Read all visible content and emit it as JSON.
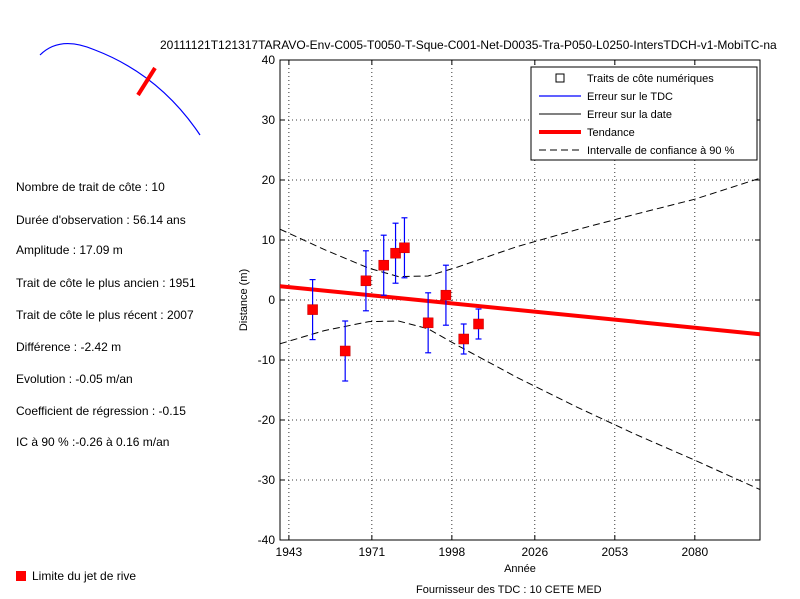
{
  "figure_title": "20111121T121317TARAVO-Env-C005-T0050-T-Sque-C001-Net-D0035-Tra-P050-L0250-IntersTDCH-v1-MobiTC-na",
  "stats": [
    "Nombre de trait de côte : 10",
    "Durée d'observation : 56.14 ans",
    "Amplitude : 17.09 m",
    "Trait de côte le plus ancien : 1951",
    "Trait de côte le plus récent : 2007",
    "Différence : -2.42 m",
    "Evolution : -0.05 m/an",
    "Coefficient de régression : -0.15",
    "IC à 90 % :-0.26 à 0.16 m/an"
  ],
  "limit_label": "Limite du jet de rive",
  "provider": "Fournisseur des TDC : 10 CETE MED",
  "colors": {
    "points": "#ff0000",
    "error": "#0000ff",
    "trend": "#ff0000",
    "ci": "#000000",
    "inset_line": "#0000ff",
    "inset_mark": "#ff0000"
  },
  "chart_data": {
    "type": "scatter",
    "xlabel": "Année",
    "ylabel": "Distance (m)",
    "xlim": [
      1940,
      2102
    ],
    "ylim": [
      -40,
      40
    ],
    "xticks": [
      1943,
      1971,
      1998,
      2026,
      2053,
      2080
    ],
    "yticks": [
      -40,
      -30,
      -20,
      -10,
      0,
      10,
      20,
      30,
      40
    ],
    "grid": true,
    "legend_position": "top-right",
    "legend": [
      "Traits de côte numériques",
      "Erreur sur le TDC",
      "Erreur sur la date",
      "Tendance",
      "Intervalle de confiance à 90 %"
    ],
    "points": [
      {
        "x": 1951,
        "y": -1.6,
        "err": 5
      },
      {
        "x": 1962,
        "y": -8.5,
        "err": 5
      },
      {
        "x": 1969,
        "y": 3.2,
        "err": 5
      },
      {
        "x": 1975,
        "y": 5.8,
        "err": 5
      },
      {
        "x": 1979,
        "y": 7.8,
        "err": 5
      },
      {
        "x": 1982,
        "y": 8.7,
        "err": 5
      },
      {
        "x": 1990,
        "y": -3.8,
        "err": 5
      },
      {
        "x": 1996,
        "y": 0.8,
        "err": 5
      },
      {
        "x": 2002,
        "y": -6.5,
        "err": 2.5
      },
      {
        "x": 2007,
        "y": -4.0,
        "err": 2.5
      }
    ],
    "trend": [
      [
        1940,
        2.3
      ],
      [
        2102,
        -5.7
      ]
    ],
    "ci_upper": [
      [
        1940,
        11.8
      ],
      [
        1955,
        8.4
      ],
      [
        1970,
        5.3
      ],
      [
        1980,
        3.9
      ],
      [
        1990,
        4.0
      ],
      [
        2000,
        5.5
      ],
      [
        2020,
        8.9
      ],
      [
        2040,
        11.7
      ],
      [
        2060,
        14.3
      ],
      [
        2080,
        16.8
      ],
      [
        2102,
        20.3
      ]
    ],
    "ci_lower": [
      [
        1940,
        -7.3
      ],
      [
        1955,
        -5.1
      ],
      [
        1970,
        -3.6
      ],
      [
        1980,
        -3.5
      ],
      [
        1990,
        -4.8
      ],
      [
        2000,
        -7.6
      ],
      [
        2020,
        -12.9
      ],
      [
        2040,
        -17.8
      ],
      [
        2060,
        -22.4
      ],
      [
        2080,
        -26.7
      ],
      [
        2102,
        -31.6
      ]
    ]
  }
}
